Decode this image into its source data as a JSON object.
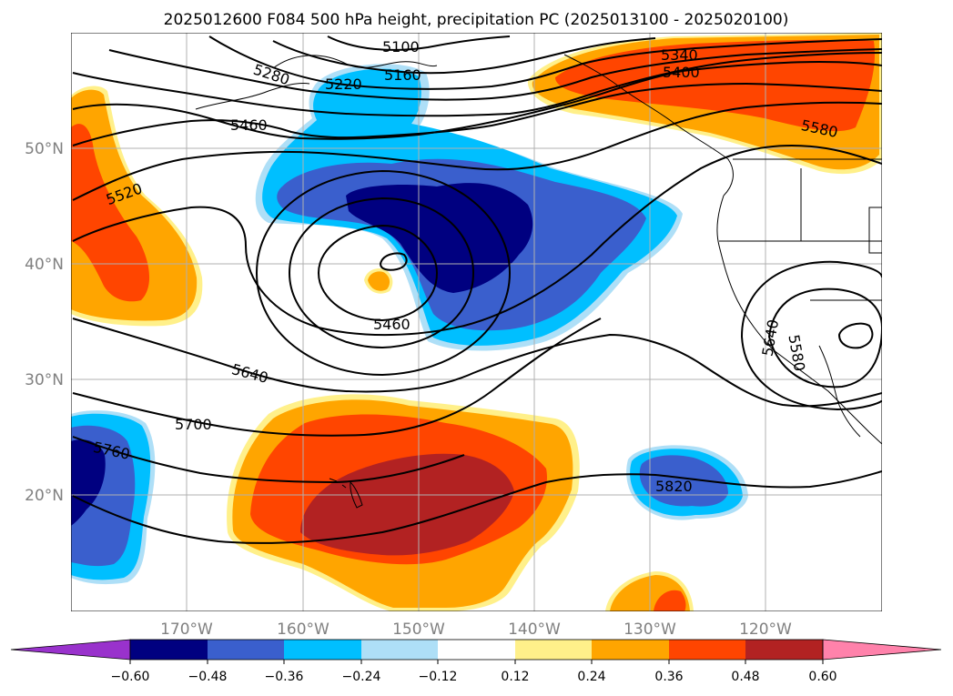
{
  "figure": {
    "title": "2025012600 F084 500 hPa height, precipitation PC (2025013100 - 2025020100)"
  },
  "map": {
    "lat_labels": [
      "50°N",
      "40°N",
      "30°N",
      "20°N"
    ],
    "lon_labels": [
      "170°W",
      "160°W",
      "150°W",
      "140°W",
      "130°W",
      "120°W"
    ],
    "contour_labels": [
      "5100",
      "5160",
      "5220",
      "5280",
      "5340",
      "5400",
      "5460",
      "5460",
      "5520",
      "5580",
      "5580",
      "5640",
      "5640",
      "5700",
      "5760",
      "5820"
    ]
  },
  "colorbar": {
    "tick_labels": [
      "−0.60",
      "−0.48",
      "−0.36",
      "−0.24",
      "−0.12",
      "0.12",
      "0.24",
      "0.36",
      "0.48",
      "0.60"
    ],
    "colors": [
      "#9932cc",
      "#000080",
      "#3a5fcd",
      "#00bfff",
      "#aedff7",
      "#ffffff",
      "#fff08a",
      "#ffa500",
      "#ff4500",
      "#b22222",
      "#ff82ab"
    ]
  },
  "colors": {
    "deep_blue": "#000080",
    "royal_blue": "#3a5fcd",
    "sky_blue": "#00bfff",
    "light_blue": "#aedff7",
    "light_yellow": "#fff08a",
    "orange": "#ffa500",
    "orange_red": "#ff4500",
    "firebrick": "#b22222"
  }
}
